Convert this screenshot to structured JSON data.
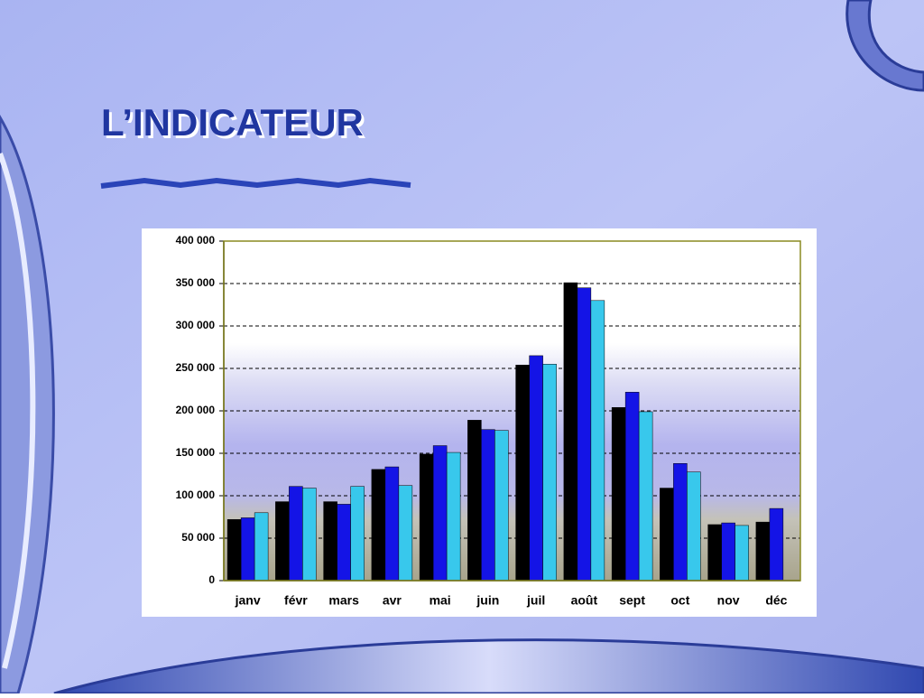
{
  "title": "L’INDICATEUR",
  "chart_data": {
    "type": "bar",
    "categories": [
      "janv",
      "févr",
      "mars",
      "avr",
      "mai",
      "juin",
      "juil",
      "août",
      "sept",
      "oct",
      "nov",
      "déc"
    ],
    "series": [
      {
        "color": "#000000",
        "values": [
          72000,
          93000,
          93000,
          131000,
          149000,
          189000,
          254000,
          351000,
          204000,
          109000,
          66000,
          69000
        ]
      },
      {
        "color": "#1414e6",
        "values": [
          74000,
          111000,
          90000,
          134000,
          159000,
          178000,
          265000,
          345000,
          222000,
          138000,
          68000,
          85000
        ]
      },
      {
        "color": "#38c8ec",
        "values": [
          80000,
          109000,
          111000,
          112000,
          151000,
          177000,
          255000,
          330000,
          199000,
          128000,
          65000,
          null
        ]
      }
    ],
    "ylim": [
      0,
      400000
    ],
    "yticks": [
      0,
      {
        "value": 50000,
        "label": "50 000"
      },
      {
        "value": 100000,
        "label": "100 000"
      },
      {
        "value": 150000,
        "label": "150 000"
      },
      {
        "value": 200000,
        "label": "200 000"
      },
      {
        "value": 250000,
        "label": "250 000"
      },
      {
        "value": 300000,
        "label": "300 000"
      },
      {
        "value": 350000,
        "label": "350 000"
      },
      {
        "value": 400000,
        "label": "400 000"
      }
    ],
    "grid": true
  }
}
